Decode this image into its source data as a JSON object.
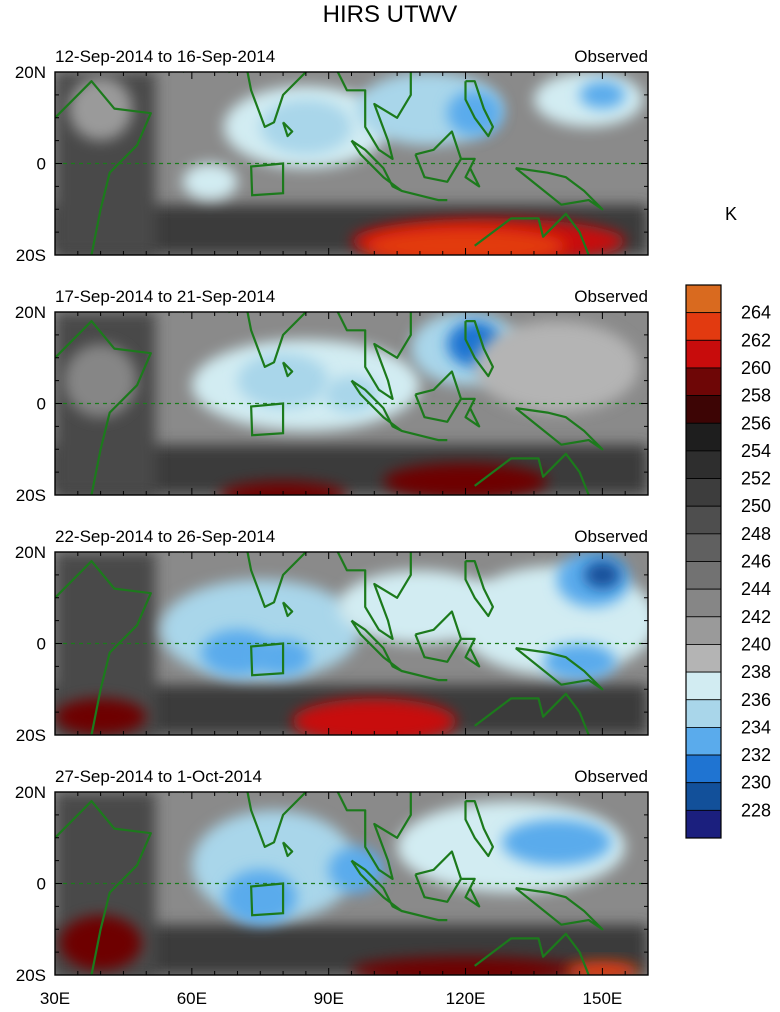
{
  "chart_data": {
    "type": "heatmap",
    "title": "HIRS UTWV",
    "colorbar": {
      "unit": "K",
      "levels": [
        "264",
        "262",
        "260",
        "258",
        "256",
        "254",
        "252",
        "250",
        "248",
        "246",
        "244",
        "242",
        "240",
        "238",
        "236",
        "234",
        "232",
        "230",
        "228"
      ],
      "colors": [
        "#d96a1f",
        "#e23a10",
        "#c80c0c",
        "#6e0606",
        "#3d0505",
        "#1e1e1e",
        "#2e2e2e",
        "#3d3d3d",
        "#4e4e4e",
        "#606060",
        "#727272",
        "#868686",
        "#9a9a9a",
        "#b4b4b4",
        "#d2ecf2",
        "#a9d6ea",
        "#5aabec",
        "#1f74d2",
        "#12509a",
        "#1b1f7e"
      ]
    },
    "x_ticks": [
      "30E",
      "60E",
      "90E",
      "120E",
      "150E"
    ],
    "y_ticks": [
      "20N",
      "0",
      "20S"
    ],
    "xlim": [
      30,
      160
    ],
    "ylim": [
      -20,
      20
    ],
    "panels": [
      {
        "period": "12-Sep-2014 to 16-Sep-2014",
        "source": "Observed",
        "blobs": [
          {
            "lon": 40,
            "lat": 12,
            "rlon": 7,
            "rlat": 7,
            "v": 241
          },
          {
            "lon": 64,
            "lat": -4,
            "rlon": 6,
            "rlat": 4,
            "v": 237
          },
          {
            "lon": 85,
            "lat": 8,
            "rlon": 18,
            "rlat": 9,
            "v": 236
          },
          {
            "lon": 85,
            "lat": 8,
            "rlon": 10,
            "rlat": 6,
            "v": 234
          },
          {
            "lon": 112,
            "lat": 12,
            "rlon": 16,
            "rlat": 8,
            "v": 235
          },
          {
            "lon": 122,
            "lat": 11,
            "rlon": 6,
            "rlat": 5,
            "v": 232
          },
          {
            "lon": 147,
            "lat": 14,
            "rlon": 12,
            "rlat": 6,
            "v": 236
          },
          {
            "lon": 150,
            "lat": 15,
            "rlon": 5,
            "rlat": 3,
            "v": 232
          },
          {
            "lon": 125,
            "lat": -17,
            "rlon": 30,
            "rlat": 5,
            "v": 260
          },
          {
            "lon": 120,
            "lat": -18,
            "rlon": 22,
            "rlat": 4,
            "v": 262
          }
        ]
      },
      {
        "period": "17-Sep-2014 to 21-Sep-2014",
        "source": "Observed",
        "blobs": [
          {
            "lon": 40,
            "lat": 5,
            "rlon": 8,
            "rlat": 8,
            "v": 243
          },
          {
            "lon": 85,
            "lat": 4,
            "rlon": 25,
            "rlat": 10,
            "v": 236
          },
          {
            "lon": 80,
            "lat": 5,
            "rlon": 10,
            "rlat": 6,
            "v": 234
          },
          {
            "lon": 95,
            "lat": 2,
            "rlon": 6,
            "rlat": 4,
            "v": 234
          },
          {
            "lon": 120,
            "lat": 12,
            "rlon": 12,
            "rlat": 8,
            "v": 234
          },
          {
            "lon": 122,
            "lat": 13,
            "rlon": 6,
            "rlat": 5,
            "v": 231
          },
          {
            "lon": 140,
            "lat": 8,
            "rlon": 18,
            "rlat": 10,
            "v": 238
          },
          {
            "lon": 120,
            "lat": -17,
            "rlon": 18,
            "rlat": 4,
            "v": 258
          },
          {
            "lon": 80,
            "lat": -20,
            "rlon": 14,
            "rlat": 3,
            "v": 258
          }
        ]
      },
      {
        "period": "22-Sep-2014 to 26-Sep-2014",
        "source": "Observed",
        "blobs": [
          {
            "lon": 75,
            "lat": 3,
            "rlon": 22,
            "rlat": 11,
            "v": 235
          },
          {
            "lon": 70,
            "lat": -2,
            "rlon": 8,
            "rlat": 5,
            "v": 233
          },
          {
            "lon": 80,
            "lat": -3,
            "rlon": 6,
            "rlat": 4,
            "v": 232
          },
          {
            "lon": 110,
            "lat": 8,
            "rlon": 18,
            "rlat": 8,
            "v": 237
          },
          {
            "lon": 140,
            "lat": 5,
            "rlon": 22,
            "rlat": 12,
            "v": 236
          },
          {
            "lon": 148,
            "lat": 14,
            "rlon": 8,
            "rlat": 6,
            "v": 232
          },
          {
            "lon": 150,
            "lat": 15,
            "rlon": 4,
            "rlat": 3,
            "v": 228
          },
          {
            "lon": 145,
            "lat": -4,
            "rlon": 8,
            "rlat": 4,
            "v": 233
          },
          {
            "lon": 100,
            "lat": -17,
            "rlon": 18,
            "rlat": 5,
            "v": 261
          },
          {
            "lon": 40,
            "lat": -16,
            "rlon": 10,
            "rlat": 4,
            "v": 258
          }
        ]
      },
      {
        "period": "27-Sep-2014 to 1-Oct-2014",
        "source": "Observed",
        "blobs": [
          {
            "lon": 78,
            "lat": 4,
            "rlon": 18,
            "rlat": 12,
            "v": 235
          },
          {
            "lon": 75,
            "lat": -3,
            "rlon": 8,
            "rlat": 6,
            "v": 232
          },
          {
            "lon": 96,
            "lat": 3,
            "rlon": 6,
            "rlat": 5,
            "v": 233
          },
          {
            "lon": 130,
            "lat": 8,
            "rlon": 25,
            "rlat": 10,
            "v": 236
          },
          {
            "lon": 140,
            "lat": 9,
            "rlon": 12,
            "rlat": 5,
            "v": 232
          },
          {
            "lon": 40,
            "lat": -13,
            "rlon": 9,
            "rlat": 6,
            "v": 259
          },
          {
            "lon": 120,
            "lat": -19,
            "rlon": 25,
            "rlat": 3,
            "v": 258
          },
          {
            "lon": 150,
            "lat": -19,
            "rlon": 8,
            "rlat": 2,
            "v": 262
          }
        ]
      }
    ]
  }
}
